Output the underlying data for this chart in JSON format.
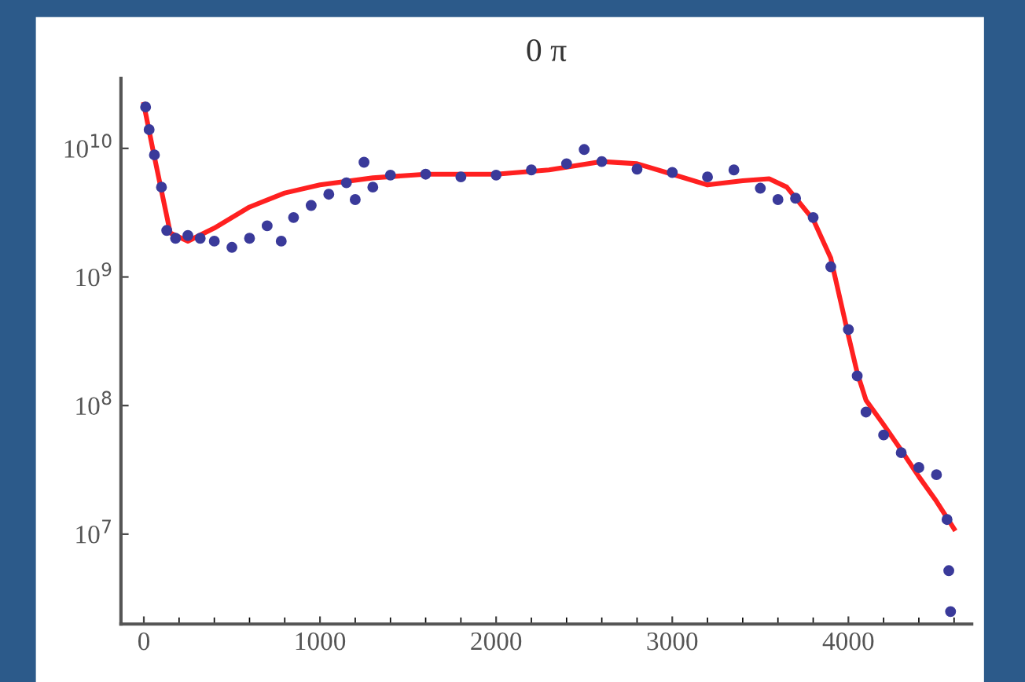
{
  "chart_data": {
    "type": "scatter",
    "title": "0 π",
    "log": "y",
    "grid": false,
    "marker": "circle",
    "xlim": [
      -130,
      4700
    ],
    "xticks": [
      0,
      1000,
      2000,
      3000,
      4000
    ],
    "ylim": [
      2000000.0,
      35000000000.0
    ],
    "yticks": [
      {
        "value": 10000000.0,
        "label": "10$^{7}$"
      },
      {
        "value": 100000000.0,
        "label": "10$^{8}$"
      },
      {
        "value": 1000000000.0,
        "label": "10$^{9}$"
      },
      {
        "value": 10000000000.0,
        "label": "10$^{10}$"
      }
    ],
    "series": [
      {
        "type": "line",
        "color": "#ff2020",
        "marker": "none",
        "line_style": "solid",
        "x": [
          0,
          50,
          150,
          250,
          400,
          600,
          800,
          1000,
          1300,
          1600,
          2000,
          2300,
          2600,
          2800,
          3000,
          3200,
          3400,
          3550,
          3650,
          3800,
          3900,
          4000,
          4050,
          4100,
          4200,
          4300,
          4400,
          4500,
          4600
        ],
        "values": [
          22000000000.0,
          10000000000.0,
          2200000000.0,
          1900000000.0,
          2400000000.0,
          3500000000.0,
          4500000000.0,
          5200000000.0,
          5900000000.0,
          6300000000.0,
          6300000000.0,
          6800000000.0,
          7900000000.0,
          7600000000.0,
          6300000000.0,
          5200000000.0,
          5600000000.0,
          5800000000.0,
          5000000000.0,
          2800000000.0,
          1400000000.0,
          350000000.0,
          180000000.0,
          110000000.0,
          71000000.0,
          45000000.0,
          28000000.0,
          18000000.0,
          11000000.0
        ]
      },
      {
        "color": "#3a3a9a",
        "x": [
          10,
          30,
          60,
          100,
          130,
          180,
          250,
          320,
          400,
          500,
          600,
          700,
          780,
          850,
          950,
          1050,
          1150,
          1200,
          1250,
          1300,
          1400,
          1600,
          1800,
          2000,
          2200,
          2400,
          2500,
          2600,
          2800,
          3000,
          3200,
          3350,
          3500,
          3600,
          3700,
          3800,
          3900,
          4000,
          4050,
          4100,
          4200,
          4300,
          4400,
          4500,
          4560,
          4570,
          4580
        ],
        "values": [
          21000000000.0,
          14000000000.0,
          8900000000.0,
          5000000000.0,
          2300000000.0,
          2000000000.0,
          2100000000.0,
          2000000000.0,
          1900000000.0,
          1700000000.0,
          2000000000.0,
          2500000000.0,
          1900000000.0,
          2900000000.0,
          3600000000.0,
          4400000000.0,
          5400000000.0,
          4000000000.0,
          7800000000.0,
          5000000000.0,
          6200000000.0,
          6300000000.0,
          6000000000.0,
          6200000000.0,
          6800000000.0,
          7600000000.0,
          9800000000.0,
          7900000000.0,
          6900000000.0,
          6500000000.0,
          6000000000.0,
          6800000000.0,
          4900000000.0,
          4000000000.0,
          4100000000.0,
          2900000000.0,
          1200000000.0,
          390000000.0,
          170000000.0,
          89000000.0,
          59000000.0,
          43000000.0,
          33000000.0,
          29000000.0,
          13000000.0,
          5200000.0,
          2500000.0
        ]
      }
    ]
  }
}
